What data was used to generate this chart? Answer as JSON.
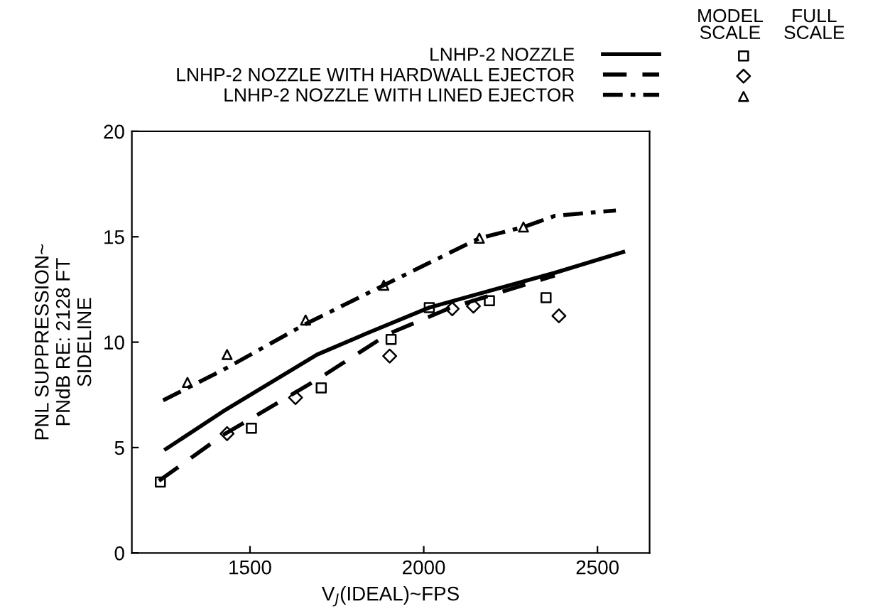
{
  "chart_data": {
    "type": "line",
    "xlabel": "V$_{J}$(IDEAL)~FPS",
    "ylabel": "PNL SUPPRESSION~\nPNdB RE: 2128 FT\nSIDELINE",
    "annotations": [
      "MODEL\nSCALE",
      "FULL\nSCALE"
    ],
    "xlim": [
      1160,
      2650
    ],
    "ylim": [
      0,
      20
    ],
    "xticks": [
      1500,
      2000,
      2500
    ],
    "yticks": [
      0,
      5,
      10,
      15,
      20
    ],
    "grid": false,
    "legend": "top",
    "series": [
      {
        "name": "LNHP-2 NOZZLE",
        "line_style": "solid",
        "color": "#000000",
        "x": [
          1258,
          1422,
          1693,
          1832,
          2016,
          2377,
          2574
        ],
        "values": [
          4.93,
          6.71,
          9.41,
          10.39,
          11.64,
          13.29,
          14.28
        ]
      },
      {
        "name": "LNHP-2 NOZZLE WITH HARDWALL EJECTOR",
        "line_style": "dashed",
        "color": "#000000",
        "x": [
          1238,
          1422,
          1693,
          1898,
          2078,
          2377
        ],
        "values": [
          3.42,
          5.59,
          8.22,
          10.39,
          11.64,
          13.16
        ]
      },
      {
        "name": "LNHP-2 NOZZLE WITH LINED EJECTOR",
        "line_style": "dashdot",
        "color": "#000000",
        "x": [
          1250,
          1422,
          1660,
          1885,
          2160,
          2287,
          2377,
          2553
        ],
        "values": [
          7.24,
          8.68,
          10.86,
          12.7,
          14.93,
          15.46,
          15.99,
          16.25
        ]
      },
      {
        "type": "scatter",
        "marker": "square",
        "color": "#000000",
        "x": [
          1242,
          1504,
          1705,
          1906,
          2016,
          2189,
          2352
        ],
        "values": [
          3.36,
          5.92,
          7.83,
          10.13,
          11.64,
          11.97,
          12.11
        ]
      },
      {
        "type": "scatter",
        "marker": "diamond",
        "color": "#000000",
        "x": [
          1434,
          1631,
          1902,
          2082,
          2143,
          2389
        ],
        "values": [
          5.66,
          7.37,
          9.34,
          11.58,
          11.71,
          11.25
        ]
      },
      {
        "type": "scatter",
        "marker": "triangle",
        "color": "#000000",
        "x": [
          1320,
          1434,
          1660,
          1885,
          2160,
          2287
        ],
        "values": [
          8.09,
          9.41,
          11.05,
          12.7,
          14.93,
          15.46
        ]
      }
    ]
  }
}
